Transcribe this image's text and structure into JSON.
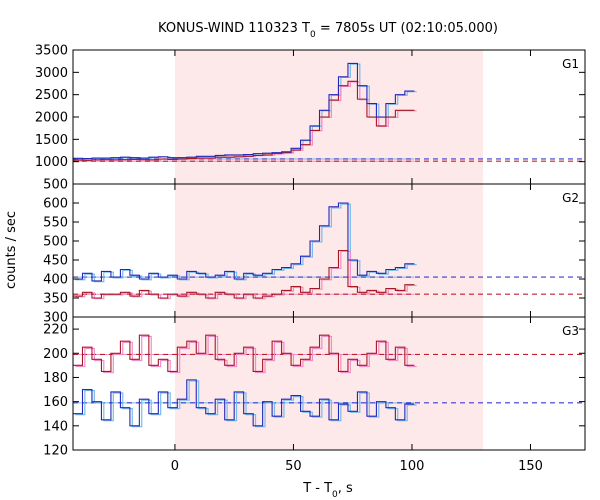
{
  "chart_data": {
    "type": "line",
    "title_main": "KONUS-WIND 110323 T",
    "title_sub": "0",
    "title_rest": " = 7805s UT (02:10:05.000)",
    "xlabel_main": "T - T",
    "xlabel_sub": "0",
    "xlabel_rest": ", s",
    "ylabel": "counts / sec",
    "xlim": [
      -43,
      173
    ],
    "xticks": [
      "0",
      "50",
      "100",
      "150"
    ],
    "xtick_values": [
      0,
      50,
      100,
      150
    ],
    "shaded_interval": [
      0,
      130
    ],
    "colors": {
      "shade": "#fde8ea",
      "series_a_step": "#2626b8",
      "series_a_fit": "#77bde8",
      "series_b_step": "#a31a25",
      "series_b_fit": "#f08cc8",
      "bg_a": "#3a3ad0",
      "bg_b": "#c0202c"
    },
    "panels": [
      {
        "label": "G1",
        "ylim": [
          500,
          3500
        ],
        "yticks": [
          "3500",
          "3000",
          "2500",
          "2000",
          "1500",
          "1000",
          "500"
        ],
        "ytick_values": [
          3500,
          3000,
          2500,
          2000,
          1500,
          1000,
          500
        ],
        "bg_a_level": 1060,
        "bg_b_level": 1010,
        "bin_start": -43,
        "bin_width": 4,
        "series_a": [
          1075,
          1070,
          1080,
          1080,
          1090,
          1100,
          1090,
          1080,
          1100,
          1110,
          1090,
          1090,
          1100,
          1120,
          1120,
          1140,
          1150,
          1150,
          1160,
          1180,
          1190,
          1200,
          1220,
          1300,
          1480,
          1800,
          2150,
          2500,
          2900,
          3200,
          2700,
          2300,
          2000,
          2300,
          2500,
          2580
        ],
        "series_b": [
          1035,
          1030,
          1040,
          1045,
          1040,
          1045,
          1050,
          1045,
          1040,
          1060,
          1050,
          1060,
          1070,
          1080,
          1080,
          1100,
          1100,
          1110,
          1120,
          1140,
          1150,
          1180,
          1200,
          1260,
          1380,
          1700,
          2000,
          2380,
          2700,
          2800,
          2400,
          2000,
          1800,
          2000,
          2150,
          2150
        ]
      },
      {
        "label": "G2",
        "ylim": [
          300,
          650
        ],
        "yticks": [
          "600",
          "550",
          "500",
          "450",
          "400",
          "350",
          "300"
        ],
        "ytick_values": [
          600,
          550,
          500,
          450,
          400,
          350,
          300
        ],
        "bg_a_level": 405,
        "bg_b_level": 360,
        "bin_start": -43,
        "bin_width": 4,
        "series_a": [
          400,
          415,
          395,
          420,
          405,
          425,
          410,
          400,
          415,
          405,
          410,
          400,
          420,
          415,
          405,
          410,
          420,
          400,
          415,
          410,
          415,
          425,
          430,
          440,
          460,
          500,
          540,
          590,
          600,
          450,
          410,
          420,
          415,
          425,
          430,
          440
        ],
        "series_b": [
          355,
          365,
          350,
          360,
          360,
          365,
          355,
          370,
          360,
          350,
          360,
          355,
          365,
          360,
          350,
          365,
          360,
          350,
          360,
          350,
          355,
          360,
          370,
          380,
          365,
          375,
          400,
          430,
          475,
          380,
          365,
          370,
          365,
          375,
          370,
          385
        ]
      },
      {
        "label": "G3",
        "ylim": [
          120,
          230
        ],
        "yticks": [
          "220",
          "200",
          "180",
          "160",
          "140",
          "120"
        ],
        "ytick_values": [
          220,
          200,
          180,
          160,
          140,
          120
        ],
        "bg_a_level": 159,
        "bg_b_level": 199,
        "bin_start": -43,
        "bin_width": 4,
        "series_a": [
          150,
          170,
          160,
          145,
          168,
          155,
          140,
          162,
          150,
          168,
          155,
          162,
          178,
          155,
          150,
          162,
          145,
          168,
          150,
          140,
          160,
          148,
          162,
          165,
          152,
          148,
          162,
          145,
          158,
          152,
          168,
          148,
          160,
          155,
          145,
          158
        ],
        "series_b": [
          190,
          205,
          195,
          185,
          200,
          210,
          195,
          215,
          190,
          195,
          185,
          205,
          210,
          200,
          215,
          195,
          190,
          200,
          205,
          185,
          195,
          210,
          200,
          190,
          195,
          205,
          215,
          200,
          185,
          195,
          190,
          200,
          210,
          195,
          205,
          190
        ]
      }
    ]
  }
}
